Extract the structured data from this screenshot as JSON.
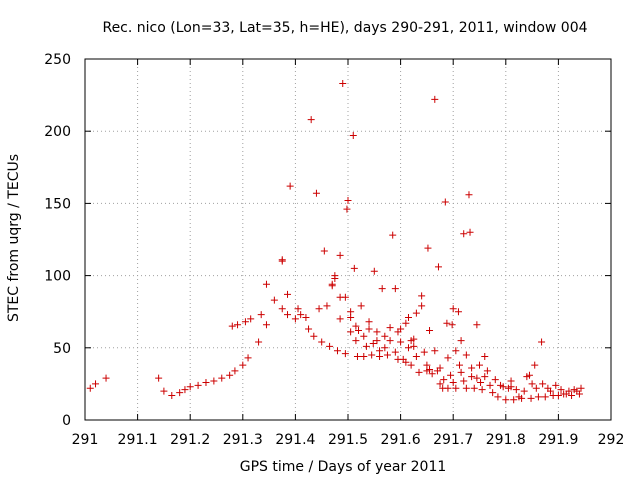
{
  "chart_data": {
    "type": "scatter",
    "title": "Rec. nico (Lon=33, Lat=35, h=HE), days 290-291, 2011, window 004",
    "xlabel": "GPS time / Days of year 2011",
    "ylabel": "STEC from uqrg / TECUs",
    "xlim": [
      291,
      292
    ],
    "ylim": [
      0,
      250
    ],
    "x_ticks": [
      291,
      291.1,
      291.2,
      291.3,
      291.4,
      291.5,
      291.6,
      291.7,
      291.8,
      291.9,
      292
    ],
    "x_tick_labels": [
      "291",
      "291.1",
      "291.2",
      "291.3",
      "291.4",
      "291.5",
      "291.6",
      "291.7",
      "291.8",
      "291.9",
      "292"
    ],
    "y_ticks": [
      0,
      50,
      100,
      150,
      200,
      250
    ],
    "y_tick_labels": [
      "0",
      "50",
      "100",
      "150",
      "200",
      "250"
    ],
    "grid": true,
    "marker": "+",
    "color": "#cc0000",
    "points": [
      [
        291.01,
        22
      ],
      [
        291.02,
        25
      ],
      [
        291.04,
        29
      ],
      [
        291.14,
        29
      ],
      [
        291.15,
        20
      ],
      [
        291.165,
        17
      ],
      [
        291.18,
        19
      ],
      [
        291.19,
        21
      ],
      [
        291.2,
        23
      ],
      [
        291.215,
        24
      ],
      [
        291.23,
        26
      ],
      [
        291.245,
        27
      ],
      [
        291.26,
        29
      ],
      [
        291.275,
        31
      ],
      [
        291.285,
        34
      ],
      [
        291.3,
        38
      ],
      [
        291.31,
        43
      ],
      [
        291.33,
        54
      ],
      [
        291.28,
        65
      ],
      [
        291.29,
        66
      ],
      [
        291.305,
        68
      ],
      [
        291.315,
        70
      ],
      [
        291.335,
        73
      ],
      [
        291.345,
        66
      ],
      [
        291.345,
        94
      ],
      [
        291.36,
        83
      ],
      [
        291.375,
        111
      ],
      [
        291.375,
        110
      ],
      [
        291.375,
        77
      ],
      [
        291.385,
        73
      ],
      [
        291.385,
        87
      ],
      [
        291.39,
        162
      ],
      [
        291.4,
        70
      ],
      [
        291.405,
        77
      ],
      [
        291.41,
        73
      ],
      [
        291.42,
        71
      ],
      [
        291.425,
        63
      ],
      [
        291.43,
        208
      ],
      [
        291.44,
        157
      ],
      [
        291.435,
        58
      ],
      [
        291.45,
        54
      ],
      [
        291.445,
        77
      ],
      [
        291.455,
        117
      ],
      [
        291.46,
        79
      ],
      [
        291.465,
        51
      ],
      [
        291.47,
        94
      ],
      [
        291.47,
        93
      ],
      [
        291.475,
        98
      ],
      [
        291.475,
        100
      ],
      [
        291.48,
        48
      ],
      [
        291.485,
        114
      ],
      [
        291.485,
        85
      ],
      [
        291.485,
        70
      ],
      [
        291.49,
        233
      ],
      [
        291.495,
        46
      ],
      [
        291.495,
        85
      ],
      [
        291.498,
        146
      ],
      [
        291.5,
        152
      ],
      [
        291.505,
        75
      ],
      [
        291.505,
        61
      ],
      [
        291.505,
        71
      ],
      [
        291.51,
        197
      ],
      [
        291.512,
        105
      ],
      [
        291.515,
        65
      ],
      [
        291.515,
        55
      ],
      [
        291.518,
        44
      ],
      [
        291.52,
        62
      ],
      [
        291.525,
        79
      ],
      [
        291.53,
        44
      ],
      [
        291.53,
        58
      ],
      [
        291.535,
        51
      ],
      [
        291.54,
        68
      ],
      [
        291.54,
        63
      ],
      [
        291.545,
        45
      ],
      [
        291.548,
        53
      ],
      [
        291.55,
        103
      ],
      [
        291.555,
        61
      ],
      [
        291.555,
        55
      ],
      [
        291.56,
        48
      ],
      [
        291.56,
        44
      ],
      [
        291.565,
        91
      ],
      [
        291.57,
        58
      ],
      [
        291.57,
        50
      ],
      [
        291.575,
        45
      ],
      [
        291.58,
        55
      ],
      [
        291.58,
        64
      ],
      [
        291.585,
        128
      ],
      [
        291.59,
        47
      ],
      [
        291.59,
        91
      ],
      [
        291.595,
        61
      ],
      [
        291.595,
        42
      ],
      [
        291.6,
        63
      ],
      [
        291.6,
        54
      ],
      [
        291.605,
        42
      ],
      [
        291.61,
        40
      ],
      [
        291.61,
        67
      ],
      [
        291.615,
        71
      ],
      [
        291.615,
        50
      ],
      [
        291.62,
        55
      ],
      [
        291.62,
        38
      ],
      [
        291.625,
        51
      ],
      [
        291.625,
        56
      ],
      [
        291.63,
        74
      ],
      [
        291.63,
        44
      ],
      [
        291.635,
        33
      ],
      [
        291.64,
        79
      ],
      [
        291.64,
        86
      ],
      [
        291.645,
        47
      ],
      [
        291.65,
        38
      ],
      [
        291.65,
        34
      ],
      [
        291.652,
        119
      ],
      [
        291.655,
        62
      ],
      [
        291.655,
        35
      ],
      [
        291.66,
        32
      ],
      [
        291.665,
        222
      ],
      [
        291.665,
        48
      ],
      [
        291.67,
        34
      ],
      [
        291.672,
        106
      ],
      [
        291.675,
        36
      ],
      [
        291.675,
        25
      ],
      [
        291.68,
        22
      ],
      [
        291.682,
        28
      ],
      [
        291.685,
        151
      ],
      [
        291.688,
        67
      ],
      [
        291.69,
        43
      ],
      [
        291.69,
        22
      ],
      [
        291.695,
        31
      ],
      [
        291.698,
        66
      ],
      [
        291.7,
        26
      ],
      [
        291.7,
        77
      ],
      [
        291.705,
        48
      ],
      [
        291.705,
        22
      ],
      [
        291.71,
        75
      ],
      [
        291.712,
        38
      ],
      [
        291.715,
        55
      ],
      [
        291.715,
        33
      ],
      [
        291.72,
        129
      ],
      [
        291.72,
        27
      ],
      [
        291.725,
        45
      ],
      [
        291.725,
        22
      ],
      [
        291.73,
        156
      ],
      [
        291.732,
        130
      ],
      [
        291.735,
        36
      ],
      [
        291.735,
        30
      ],
      [
        291.74,
        22
      ],
      [
        291.745,
        66
      ],
      [
        291.745,
        29
      ],
      [
        291.75,
        38
      ],
      [
        291.752,
        26
      ],
      [
        291.755,
        21
      ],
      [
        291.76,
        44
      ],
      [
        291.76,
        30
      ],
      [
        291.765,
        34
      ],
      [
        291.77,
        24
      ],
      [
        291.775,
        19
      ],
      [
        291.78,
        28
      ],
      [
        291.785,
        16
      ],
      [
        291.79,
        24
      ],
      [
        291.795,
        23
      ],
      [
        291.8,
        14
      ],
      [
        291.805,
        22
      ],
      [
        291.81,
        23
      ],
      [
        291.81,
        27
      ],
      [
        291.815,
        14
      ],
      [
        291.82,
        21
      ],
      [
        291.825,
        16
      ],
      [
        291.83,
        15
      ],
      [
        291.835,
        20
      ],
      [
        291.84,
        30
      ],
      [
        291.845,
        31
      ],
      [
        291.848,
        15
      ],
      [
        291.85,
        25
      ],
      [
        291.855,
        38
      ],
      [
        291.858,
        22
      ],
      [
        291.862,
        16
      ],
      [
        291.868,
        54
      ],
      [
        291.87,
        25
      ],
      [
        291.875,
        16
      ],
      [
        291.88,
        22
      ],
      [
        291.885,
        20
      ],
      [
        291.89,
        17
      ],
      [
        291.895,
        24
      ],
      [
        291.9,
        17
      ],
      [
        291.905,
        21
      ],
      [
        291.91,
        18
      ],
      [
        291.915,
        18
      ],
      [
        291.92,
        20
      ],
      [
        291.925,
        17
      ],
      [
        291.93,
        21
      ],
      [
        291.935,
        20
      ],
      [
        291.94,
        18
      ],
      [
        291.943,
        22
      ]
    ]
  }
}
